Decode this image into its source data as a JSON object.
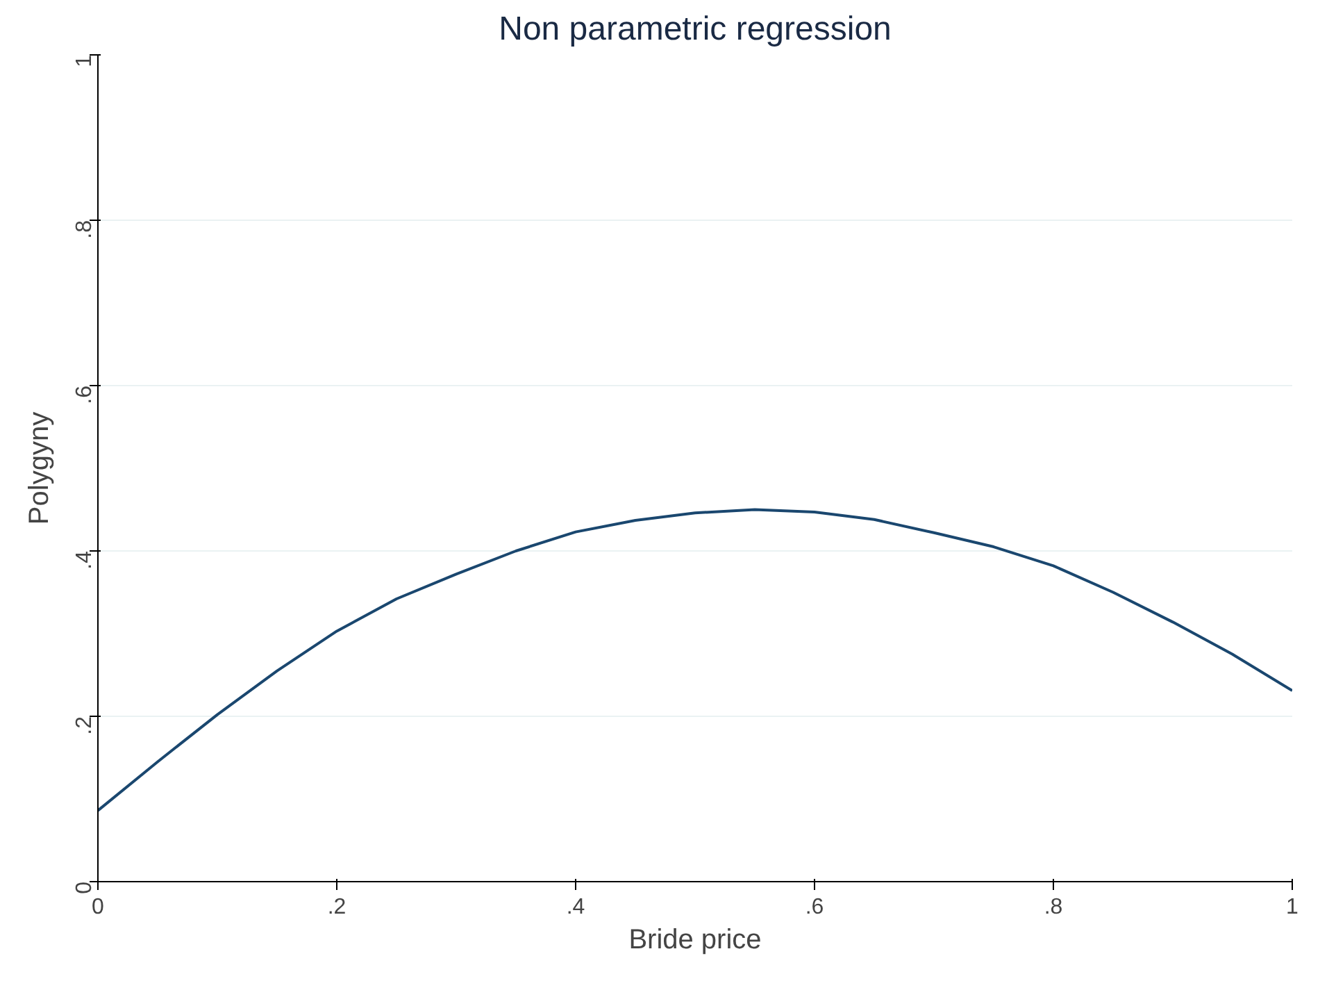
{
  "chart_data": {
    "type": "line",
    "title": "Non parametric regression",
    "xlabel": "Bride price",
    "ylabel": "Polygyny",
    "x": [
      0,
      0.05,
      0.1,
      0.15,
      0.2,
      0.25,
      0.3,
      0.35,
      0.4,
      0.45,
      0.5,
      0.55,
      0.6,
      0.65,
      0.7,
      0.75,
      0.8,
      0.85,
      0.9,
      0.95,
      1
    ],
    "series": [
      {
        "color": "#1a476f",
        "values": [
          0.086,
          0.145,
          0.202,
          0.255,
          0.303,
          0.342,
          0.372,
          0.4,
          0.423,
          0.437,
          0.446,
          0.45,
          0.447,
          0.438,
          0.422,
          0.405,
          0.382,
          0.35,
          0.314,
          0.275,
          0.231
        ]
      }
    ],
    "xlim": [
      0,
      1
    ],
    "ylim": [
      0,
      1
    ],
    "xticks": [
      0,
      {
        "value": 0.2,
        "label": ".2"
      },
      {
        "value": 0.4,
        "label": ".4"
      },
      {
        "value": 0.6,
        "label": ".6"
      },
      {
        "value": 0.8,
        "label": ".8"
      },
      1
    ],
    "yticks": [
      0,
      {
        "value": 0.2,
        "label": ".2"
      },
      {
        "value": 0.4,
        "label": ".4"
      },
      {
        "value": 0.6,
        "label": ".6"
      },
      {
        "value": 0.8,
        "label": ".8"
      },
      1
    ],
    "grid": "y",
    "marker": "none",
    "line_style": "solid"
  }
}
